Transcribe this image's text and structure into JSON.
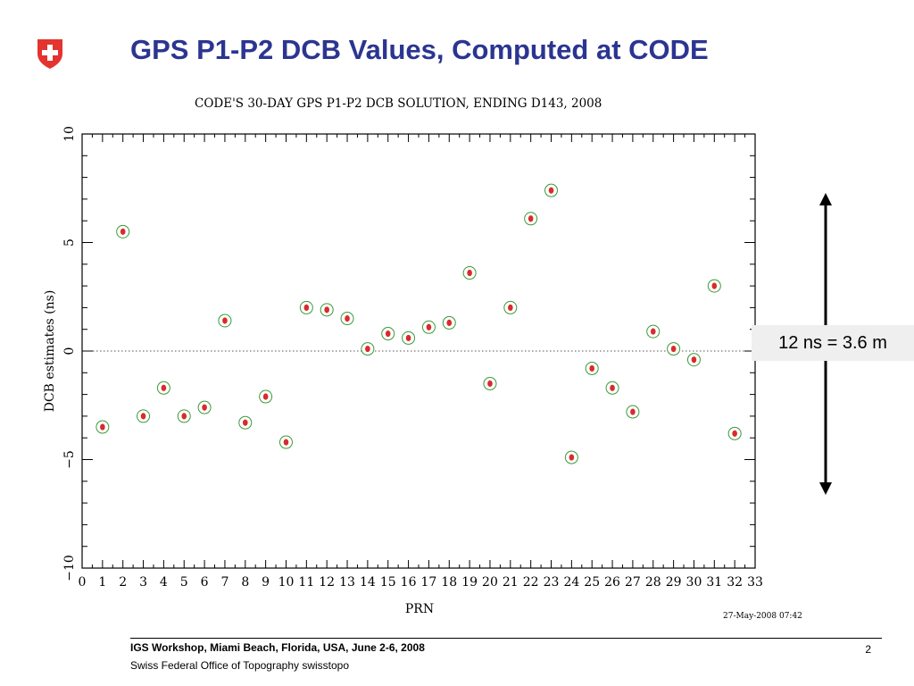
{
  "slide": {
    "title": "GPS P1-P2 DCB Values, Computed at CODE",
    "scale_note": "12 ns = 3.6 m",
    "footer_line1": "IGS Workshop, Miami Beach, Florida, USA, June 2-6, 2008",
    "footer_line2": "Swiss Federal Office of Topography swisstopo",
    "page_number": "2"
  },
  "colors": {
    "title": "#2b3591",
    "logo_red": "#e3342f",
    "marker_fill": "#d92b2b",
    "marker_ring": "#3a9a3a"
  },
  "chart_data": {
    "type": "scatter",
    "title": "CODE'S 30-DAY GPS P1-P2 DCB SOLUTION, ENDING D143, 2008",
    "xlabel": "PRN",
    "ylabel": "DCB estimates (ns)",
    "timestamp": "27-May-2008 07:42",
    "xlim": [
      0,
      33
    ],
    "ylim": [
      -10,
      10
    ],
    "x_ticks": [
      0,
      1,
      2,
      3,
      4,
      5,
      6,
      7,
      8,
      9,
      10,
      11,
      12,
      13,
      14,
      15,
      16,
      17,
      18,
      19,
      20,
      21,
      22,
      23,
      24,
      25,
      26,
      27,
      28,
      29,
      30,
      31,
      32,
      33
    ],
    "y_ticks": [
      -10,
      -5,
      0,
      5,
      10
    ],
    "reference_line_y": 0,
    "points": [
      {
        "x": 1,
        "y": -3.5
      },
      {
        "x": 2,
        "y": 5.5
      },
      {
        "x": 3,
        "y": -3.0
      },
      {
        "x": 4,
        "y": -1.7
      },
      {
        "x": 5,
        "y": -3.0
      },
      {
        "x": 6,
        "y": -2.6
      },
      {
        "x": 7,
        "y": 1.4
      },
      {
        "x": 8,
        "y": -3.3
      },
      {
        "x": 9,
        "y": -2.1
      },
      {
        "x": 10,
        "y": -4.2
      },
      {
        "x": 11,
        "y": 2.0
      },
      {
        "x": 12,
        "y": 1.9
      },
      {
        "x": 13,
        "y": 1.5
      },
      {
        "x": 14,
        "y": 0.1
      },
      {
        "x": 15,
        "y": 0.8
      },
      {
        "x": 16,
        "y": 0.6
      },
      {
        "x": 17,
        "y": 1.1
      },
      {
        "x": 18,
        "y": 1.3
      },
      {
        "x": 19,
        "y": 3.6
      },
      {
        "x": 20,
        "y": -1.5
      },
      {
        "x": 21,
        "y": 2.0
      },
      {
        "x": 22,
        "y": 6.1
      },
      {
        "x": 23,
        "y": 7.4
      },
      {
        "x": 24,
        "y": -4.9
      },
      {
        "x": 25,
        "y": -0.8
      },
      {
        "x": 26,
        "y": -1.7
      },
      {
        "x": 27,
        "y": -2.8
      },
      {
        "x": 28,
        "y": 0.9
      },
      {
        "x": 29,
        "y": 0.1
      },
      {
        "x": 30,
        "y": -0.4
      },
      {
        "x": 31,
        "y": 3.0
      },
      {
        "x": 32,
        "y": -3.8
      }
    ]
  }
}
